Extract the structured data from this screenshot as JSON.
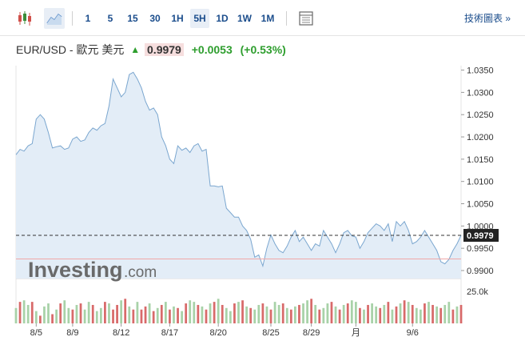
{
  "toolbar": {
    "timeframes": [
      "1",
      "5",
      "15",
      "30",
      "1H",
      "5H",
      "1D",
      "1W",
      "1M"
    ],
    "active_timeframe": "5H",
    "tech_chart_label": "技術圖表 »"
  },
  "header": {
    "pair": "EUR/USD - 歐元 美元",
    "price": "0.9979",
    "change": "+0.0053",
    "change_pct": "(+0.53%)"
  },
  "watermark": {
    "brand": "Investing",
    "suffix": ".com"
  },
  "colors": {
    "line": "#7aa6cf",
    "fill": "#e3edf7",
    "up_volume": "#a8d2a8",
    "down_volume": "#d86a6a",
    "positive": "#2e9e2e",
    "link": "#1b4d8c"
  },
  "chart_data": {
    "type": "area",
    "series_price": [
      1.016,
      1.0172,
      1.0168,
      1.018,
      1.0185,
      1.024,
      1.025,
      1.024,
      1.021,
      1.0175,
      1.0178,
      1.018,
      1.0172,
      1.0175,
      1.0195,
      1.02,
      1.019,
      1.0193,
      1.021,
      1.022,
      1.0215,
      1.0225,
      1.023,
      1.027,
      1.033,
      1.031,
      1.029,
      1.03,
      1.034,
      1.0345,
      1.033,
      1.031,
      1.028,
      1.026,
      1.0265,
      1.025,
      1.02,
      1.018,
      1.015,
      1.014,
      1.018,
      1.017,
      1.0175,
      1.0165,
      1.018,
      1.0185,
      1.0168,
      1.0172,
      1.009,
      1.009,
      1.0088,
      1.009,
      1.004,
      1.003,
      1.002,
      1.002,
      1.0,
      0.999,
      0.997,
      0.993,
      0.9935,
      0.991,
      0.995,
      0.998,
      0.996,
      0.9945,
      0.994,
      0.9955,
      0.9975,
      0.999,
      0.9965,
      0.9975,
      0.996,
      0.9945,
      0.996,
      0.9955,
      0.999,
      0.9975,
      0.996,
      0.994,
      0.996,
      0.9985,
      0.999,
      0.9978,
      0.9975,
      0.995,
      0.9965,
      0.9985,
      0.9995,
      1.0005,
      1.0,
      0.999,
      1.0005,
      0.9965,
      1.001,
      1.0,
      1.001,
      0.999,
      0.996,
      0.9965,
      0.9975,
      0.999,
      0.9975,
      0.996,
      0.9945,
      0.992,
      0.9915,
      0.9925,
      0.9945,
      0.996,
      0.9979
    ],
    "volume": [
      10,
      14,
      15,
      12,
      14,
      8,
      5,
      11,
      13,
      6,
      9,
      13,
      15,
      10,
      9,
      12,
      13,
      9,
      14,
      12,
      8,
      10,
      14,
      13,
      9,
      12,
      15,
      16,
      11,
      9,
      14,
      9,
      11,
      13,
      8,
      10,
      12,
      14,
      9,
      11,
      10,
      8,
      13,
      15,
      14,
      12,
      11,
      9,
      13,
      14,
      16,
      12,
      10,
      8,
      13,
      14,
      15,
      11,
      10,
      9,
      12,
      13,
      11,
      9,
      14,
      12,
      13,
      10,
      9,
      11,
      12,
      13,
      15,
      16,
      12,
      9,
      10,
      13,
      14,
      11,
      9,
      12,
      13,
      15,
      14,
      10,
      9,
      12,
      13,
      11,
      10,
      12,
      14,
      9,
      11,
      13,
      15,
      14,
      12,
      10,
      9,
      13,
      14,
      12,
      11,
      10,
      12,
      14,
      9,
      11,
      12
    ],
    "volume_up": [
      true,
      false,
      true,
      true,
      false,
      true,
      false,
      true,
      true,
      false,
      true,
      false,
      true,
      true,
      false,
      true,
      false,
      true,
      true,
      false,
      true,
      true,
      false,
      true,
      false,
      false,
      true,
      false,
      true,
      false,
      true,
      false,
      false,
      true,
      false,
      true,
      false,
      true,
      false,
      true,
      false,
      true,
      false,
      true,
      true,
      false,
      true,
      false,
      true,
      false,
      true,
      false,
      true,
      true,
      false,
      true,
      false,
      true,
      false,
      true,
      true,
      false,
      true,
      false,
      true,
      true,
      false,
      true,
      false,
      true,
      false,
      true,
      true,
      false,
      true,
      false,
      true,
      true,
      false,
      true,
      false,
      true,
      false,
      true,
      true,
      false,
      true,
      false,
      true,
      true,
      false,
      true,
      false,
      true,
      false,
      true,
      false,
      true,
      false,
      true,
      true,
      false,
      true,
      false,
      true,
      false,
      true,
      true,
      false,
      true,
      false
    ],
    "ylim": [
      0.9882,
      1.036
    ],
    "y_ticks": [
      "1.0350",
      "1.0300",
      "1.0250",
      "1.0200",
      "1.0150",
      "1.0100",
      "1.0050",
      "1.0000",
      "0.9950",
      "0.9900"
    ],
    "y_tick_values": [
      1.035,
      1.03,
      1.025,
      1.02,
      1.015,
      1.01,
      1.005,
      1.0,
      0.995,
      0.99
    ],
    "x_ticks": [
      "8/5",
      "8/9",
      "8/12",
      "8/17",
      "8/20",
      "8/25",
      "8/29",
      "月",
      "9/6"
    ],
    "x_tick_index": [
      5,
      14,
      26,
      38,
      50,
      63,
      73,
      84,
      98
    ],
    "current_price_label": "0.9979",
    "current_price": 0.9979,
    "reference_price": 0.9926,
    "volume_label": "25.0k",
    "volume_max": 25
  }
}
